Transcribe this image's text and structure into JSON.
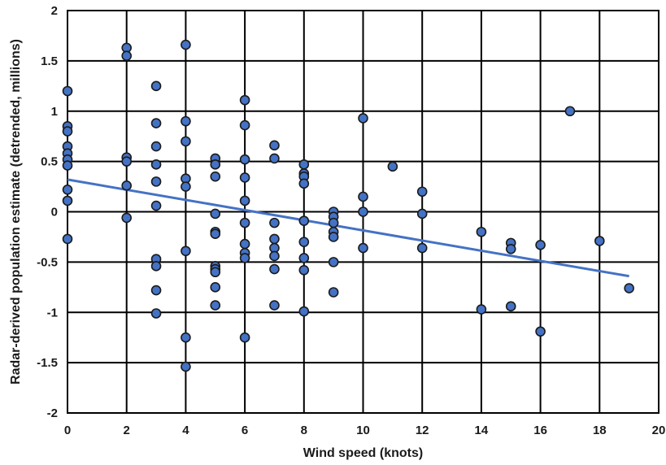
{
  "chart_data": {
    "type": "scatter",
    "xlabel": "Wind speed (knots)",
    "ylabel": "Radar-derived population estimate (detrended, millions)",
    "xlim": [
      0,
      20
    ],
    "ylim": [
      -2,
      2
    ],
    "xticks": [
      "0",
      "2",
      "4",
      "6",
      "8",
      "10",
      "12",
      "14",
      "16",
      "18",
      "20"
    ],
    "yticks": [
      "2",
      "1.5",
      "1",
      "0.5",
      "0",
      "-0.5",
      "-1",
      "-1.5",
      "-2"
    ],
    "grid": true,
    "point_color": "#4472c4",
    "point_edge_color": "#1a1a1a",
    "trendline_color": "#4472c4",
    "points": [
      {
        "x": 0,
        "y": 1.2
      },
      {
        "x": 0,
        "y": 0.85
      },
      {
        "x": 0,
        "y": 0.8
      },
      {
        "x": 0,
        "y": 0.65
      },
      {
        "x": 0,
        "y": 0.58
      },
      {
        "x": 0,
        "y": 0.52
      },
      {
        "x": 0,
        "y": 0.46
      },
      {
        "x": 0,
        "y": 0.22
      },
      {
        "x": 0,
        "y": 0.11
      },
      {
        "x": 0,
        "y": -0.27
      },
      {
        "x": 2,
        "y": 1.63
      },
      {
        "x": 2,
        "y": 1.55
      },
      {
        "x": 2,
        "y": 0.54
      },
      {
        "x": 2,
        "y": 0.5
      },
      {
        "x": 2,
        "y": 0.26
      },
      {
        "x": 2,
        "y": -0.06
      },
      {
        "x": 3,
        "y": 1.25
      },
      {
        "x": 3,
        "y": 0.88
      },
      {
        "x": 3,
        "y": 0.65
      },
      {
        "x": 3,
        "y": 0.47
      },
      {
        "x": 3,
        "y": 0.3
      },
      {
        "x": 3,
        "y": 0.06
      },
      {
        "x": 3,
        "y": -0.47
      },
      {
        "x": 3,
        "y": -0.54
      },
      {
        "x": 3,
        "y": -0.78
      },
      {
        "x": 3,
        "y": -1.01
      },
      {
        "x": 4,
        "y": 1.66
      },
      {
        "x": 4,
        "y": 0.9
      },
      {
        "x": 4,
        "y": 0.7
      },
      {
        "x": 4,
        "y": 0.33
      },
      {
        "x": 4,
        "y": 0.25
      },
      {
        "x": 4,
        "y": -0.39
      },
      {
        "x": 4,
        "y": -1.25
      },
      {
        "x": 4,
        "y": -1.54
      },
      {
        "x": 5,
        "y": 0.53
      },
      {
        "x": 5,
        "y": 0.47
      },
      {
        "x": 5,
        "y": 0.35
      },
      {
        "x": 5,
        "y": -0.02
      },
      {
        "x": 5,
        "y": -0.2
      },
      {
        "x": 5,
        "y": -0.22
      },
      {
        "x": 5,
        "y": -0.54
      },
      {
        "x": 5,
        "y": -0.57
      },
      {
        "x": 5,
        "y": -0.6
      },
      {
        "x": 5,
        "y": -0.75
      },
      {
        "x": 5,
        "y": -0.93
      },
      {
        "x": 6,
        "y": 1.11
      },
      {
        "x": 6,
        "y": 0.86
      },
      {
        "x": 6,
        "y": 0.52
      },
      {
        "x": 6,
        "y": 0.34
      },
      {
        "x": 6,
        "y": 0.11
      },
      {
        "x": 6,
        "y": -0.11
      },
      {
        "x": 6,
        "y": -0.32
      },
      {
        "x": 6,
        "y": -0.41
      },
      {
        "x": 6,
        "y": -0.46
      },
      {
        "x": 6,
        "y": -1.25
      },
      {
        "x": 7,
        "y": 0.66
      },
      {
        "x": 7,
        "y": 0.53
      },
      {
        "x": 7,
        "y": -0.11
      },
      {
        "x": 7,
        "y": -0.27
      },
      {
        "x": 7,
        "y": -0.36
      },
      {
        "x": 7,
        "y": -0.44
      },
      {
        "x": 7,
        "y": -0.57
      },
      {
        "x": 7,
        "y": -0.93
      },
      {
        "x": 8,
        "y": 0.47
      },
      {
        "x": 8,
        "y": 0.38
      },
      {
        "x": 8,
        "y": 0.35
      },
      {
        "x": 8,
        "y": 0.28
      },
      {
        "x": 8,
        "y": -0.09
      },
      {
        "x": 8,
        "y": -0.3
      },
      {
        "x": 8,
        "y": -0.46
      },
      {
        "x": 8,
        "y": -0.58
      },
      {
        "x": 8,
        "y": -0.99
      },
      {
        "x": 9,
        "y": 0.0
      },
      {
        "x": 9,
        "y": -0.05
      },
      {
        "x": 9,
        "y": -0.11
      },
      {
        "x": 9,
        "y": -0.2
      },
      {
        "x": 9,
        "y": -0.25
      },
      {
        "x": 9,
        "y": -0.5
      },
      {
        "x": 9,
        "y": -0.8
      },
      {
        "x": 10,
        "y": 0.93
      },
      {
        "x": 10,
        "y": 0.15
      },
      {
        "x": 10,
        "y": 0.0
      },
      {
        "x": 10,
        "y": -0.36
      },
      {
        "x": 11,
        "y": 0.45
      },
      {
        "x": 12,
        "y": 0.2
      },
      {
        "x": 12,
        "y": -0.02
      },
      {
        "x": 12,
        "y": -0.36
      },
      {
        "x": 14,
        "y": -0.2
      },
      {
        "x": 14,
        "y": -0.97
      },
      {
        "x": 15,
        "y": -0.31
      },
      {
        "x": 15,
        "y": -0.37
      },
      {
        "x": 15,
        "y": -0.94
      },
      {
        "x": 16,
        "y": -0.33
      },
      {
        "x": 16,
        "y": -1.19
      },
      {
        "x": 17,
        "y": 1.0
      },
      {
        "x": 18,
        "y": -0.29
      },
      {
        "x": 19,
        "y": -0.76
      }
    ],
    "trendline": {
      "x": [
        0,
        19
      ],
      "y": [
        0.32,
        -0.64
      ]
    }
  }
}
